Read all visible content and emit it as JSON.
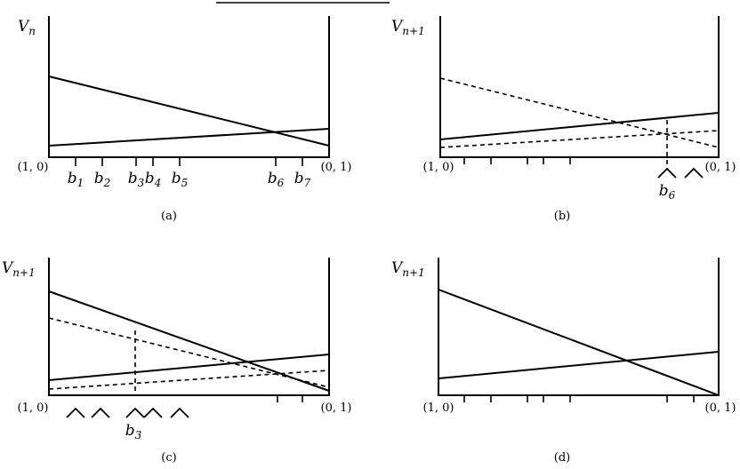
{
  "panels": [
    {
      "ylabel": {
        "main": "V",
        "sub": "n"
      },
      "left": "(1, 0)",
      "right": "(0, 1)",
      "ticks": [
        {
          "main": "b",
          "sub": "1"
        },
        {
          "main": "b",
          "sub": "2"
        },
        {
          "main": "b",
          "sub": "3"
        },
        {
          "main": "b",
          "sub": "4"
        },
        {
          "main": "b",
          "sub": "5"
        },
        {
          "main": "b",
          "sub": "6"
        },
        {
          "main": "b",
          "sub": "7"
        }
      ],
      "caption": "(a)"
    },
    {
      "ylabel": {
        "main": "V",
        "sub": "n+1"
      },
      "left": "(1, 0)",
      "right": "(0, 1)",
      "marker": {
        "main": "b",
        "sub": "6"
      },
      "caption": "(b)"
    },
    {
      "ylabel": {
        "main": "V",
        "sub": "n+1"
      },
      "left": "(1, 0)",
      "right": "(0, 1)",
      "marker": {
        "main": "b",
        "sub": "3"
      },
      "caption": "(c)"
    },
    {
      "ylabel": {
        "main": "V",
        "sub": "n+1"
      },
      "left": "(1, 0)",
      "right": "(0, 1)",
      "caption": "(d)"
    }
  ]
}
